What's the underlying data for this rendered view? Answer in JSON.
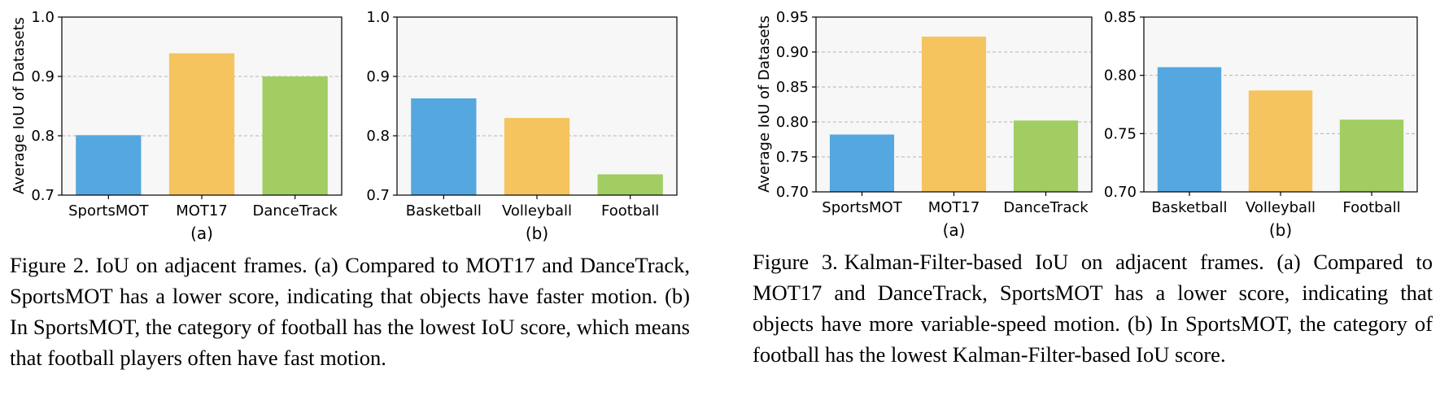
{
  "chart_data": [
    {
      "id": "fig2a",
      "type": "bar",
      "categories": [
        "SportsMOT",
        "MOT17",
        "DanceTrack"
      ],
      "values": [
        0.801,
        0.939,
        0.9
      ],
      "colors": [
        "#55a7df",
        "#f5c45e",
        "#a1cd63"
      ],
      "ylabel": "Average IoU of Datasets",
      "xlabel": "(a)",
      "ylim": [
        0.7,
        1.0
      ],
      "yticks": [
        0.7,
        0.8,
        0.9,
        1.0
      ],
      "ytick_labels": [
        "0.7",
        "0.8",
        "0.9",
        "1.0"
      ],
      "grid": "y-dashed"
    },
    {
      "id": "fig2b",
      "type": "bar",
      "categories": [
        "Basketball",
        "Volleyball",
        "Football"
      ],
      "values": [
        0.863,
        0.83,
        0.735
      ],
      "colors": [
        "#55a7df",
        "#f5c45e",
        "#a1cd63"
      ],
      "ylabel": "",
      "xlabel": "(b)",
      "ylim": [
        0.7,
        1.0
      ],
      "yticks": [
        0.7,
        0.8,
        0.9,
        1.0
      ],
      "ytick_labels": [
        "0.7",
        "0.8",
        "0.9",
        "1.0"
      ],
      "grid": "y-dashed"
    },
    {
      "id": "fig3a",
      "type": "bar",
      "categories": [
        "SportsMOT",
        "MOT17",
        "DanceTrack"
      ],
      "values": [
        0.782,
        0.922,
        0.802
      ],
      "colors": [
        "#55a7df",
        "#f5c45e",
        "#a1cd63"
      ],
      "ylabel": "Average IoU of Datasets",
      "xlabel": "(a)",
      "ylim": [
        0.7,
        0.95
      ],
      "yticks": [
        0.7,
        0.75,
        0.8,
        0.85,
        0.9,
        0.95
      ],
      "ytick_labels": [
        "0.70",
        "0.75",
        "0.80",
        "0.85",
        "0.90",
        "0.95"
      ],
      "grid": "y-dashed"
    },
    {
      "id": "fig3b",
      "type": "bar",
      "categories": [
        "Basketball",
        "Volleyball",
        "Football"
      ],
      "values": [
        0.807,
        0.787,
        0.762
      ],
      "colors": [
        "#55a7df",
        "#f5c45e",
        "#a1cd63"
      ],
      "ylabel": "",
      "xlabel": "(b)",
      "ylim": [
        0.7,
        0.85
      ],
      "yticks": [
        0.7,
        0.75,
        0.8,
        0.85
      ],
      "ytick_labels": [
        "0.70",
        "0.75",
        "0.80",
        "0.85"
      ],
      "grid": "y-dashed"
    }
  ],
  "captions": {
    "fig2": {
      "label": "Figure 2.",
      "text": "IoU on adjacent frames. (a) Compared to MOT17 and DanceTrack, SportsMOT has a lower score, indicating that objects have faster motion. (b) In SportsMOT, the category of football has the lowest IoU score, which means that football players often have fast motion."
    },
    "fig3": {
      "label": "Figure 3.",
      "text": "Kalman-Filter-based IoU on adjacent frames. (a) Compared to MOT17 and DanceTrack, SportsMOT has a lower score, indicating that objects have more variable-speed motion. (b) In SportsMOT, the category of football has the lowest Kalman-Filter-based IoU score."
    }
  }
}
